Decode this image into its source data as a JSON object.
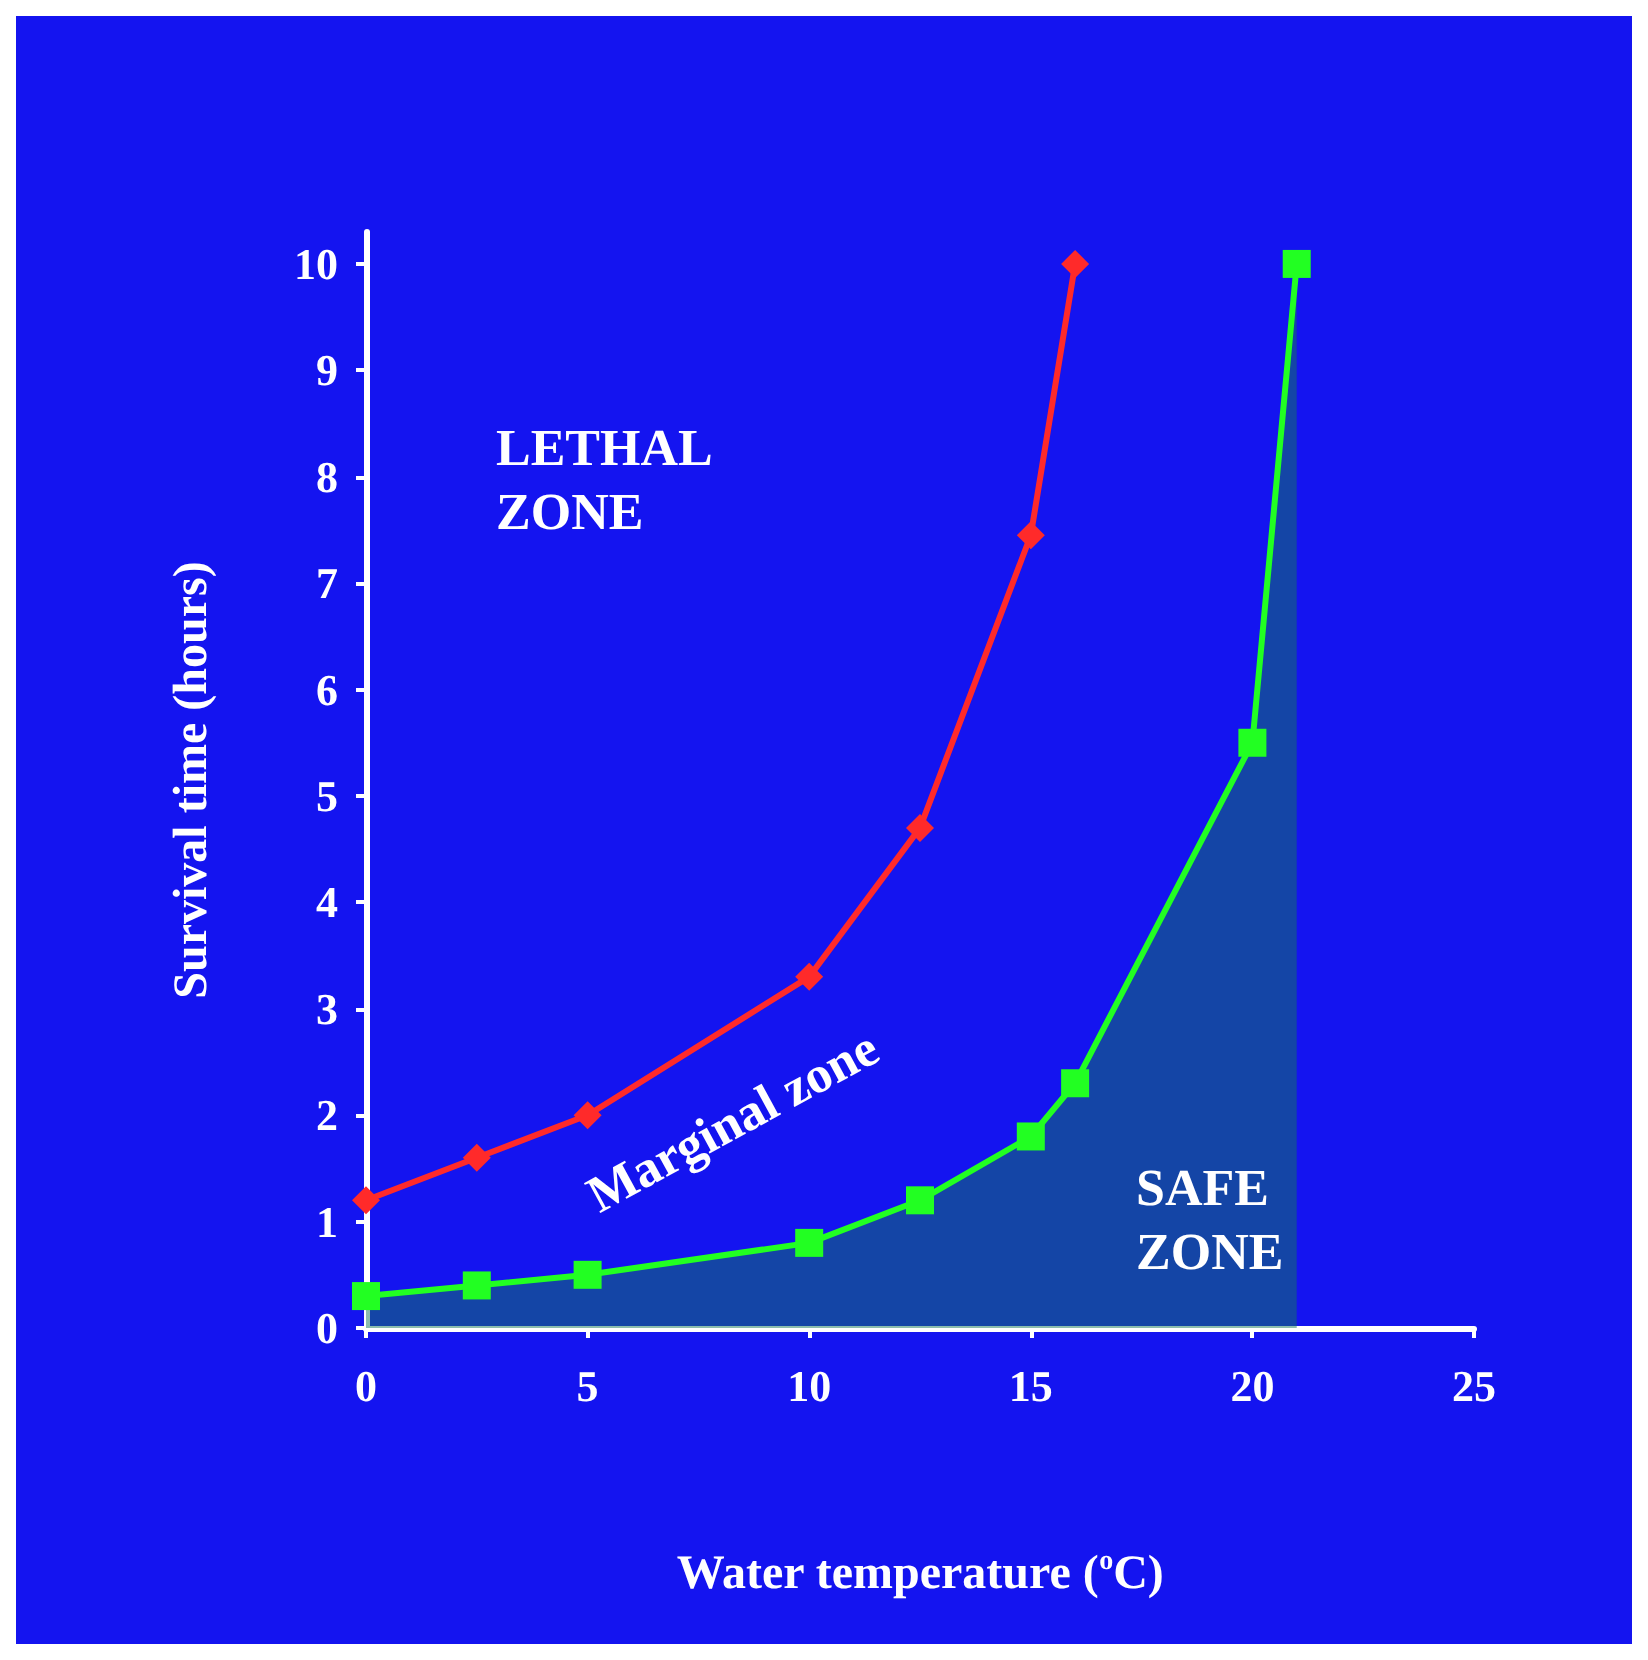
{
  "chart_data": {
    "type": "line",
    "xlabel": "Water temperature ($^{o}$C)",
    "ylabel": "Survival time (hours)",
    "xlim": [
      0,
      25
    ],
    "xticks": [
      0,
      5,
      10,
      15,
      20,
      25
    ],
    "ylim": [
      0,
      10.3
    ],
    "yticks": [
      0,
      1,
      2,
      3,
      4,
      5,
      6,
      7,
      8,
      9,
      10
    ],
    "grid": false,
    "series": [
      {
        "type": "line",
        "color": "#ff2a2a",
        "marker": "diamond",
        "x": [
          0,
          2.5,
          5,
          10,
          12.5,
          15,
          16
        ],
        "values": [
          1.2,
          1.6,
          2.0,
          3.3,
          4.7,
          7.45,
          10
        ]
      },
      {
        "type": "area",
        "color": "#22ff22",
        "marker": "square",
        "x": [
          0,
          2.5,
          5,
          10,
          12.5,
          15,
          16,
          20,
          21
        ],
        "values": [
          0.3,
          0.4,
          0.5,
          0.8,
          1.2,
          1.8,
          2.3,
          5.5,
          10
        ]
      }
    ],
    "annotations": [
      "LETHAL\nZONE",
      "Marginal zone",
      "SAFE\nZONE"
    ]
  }
}
